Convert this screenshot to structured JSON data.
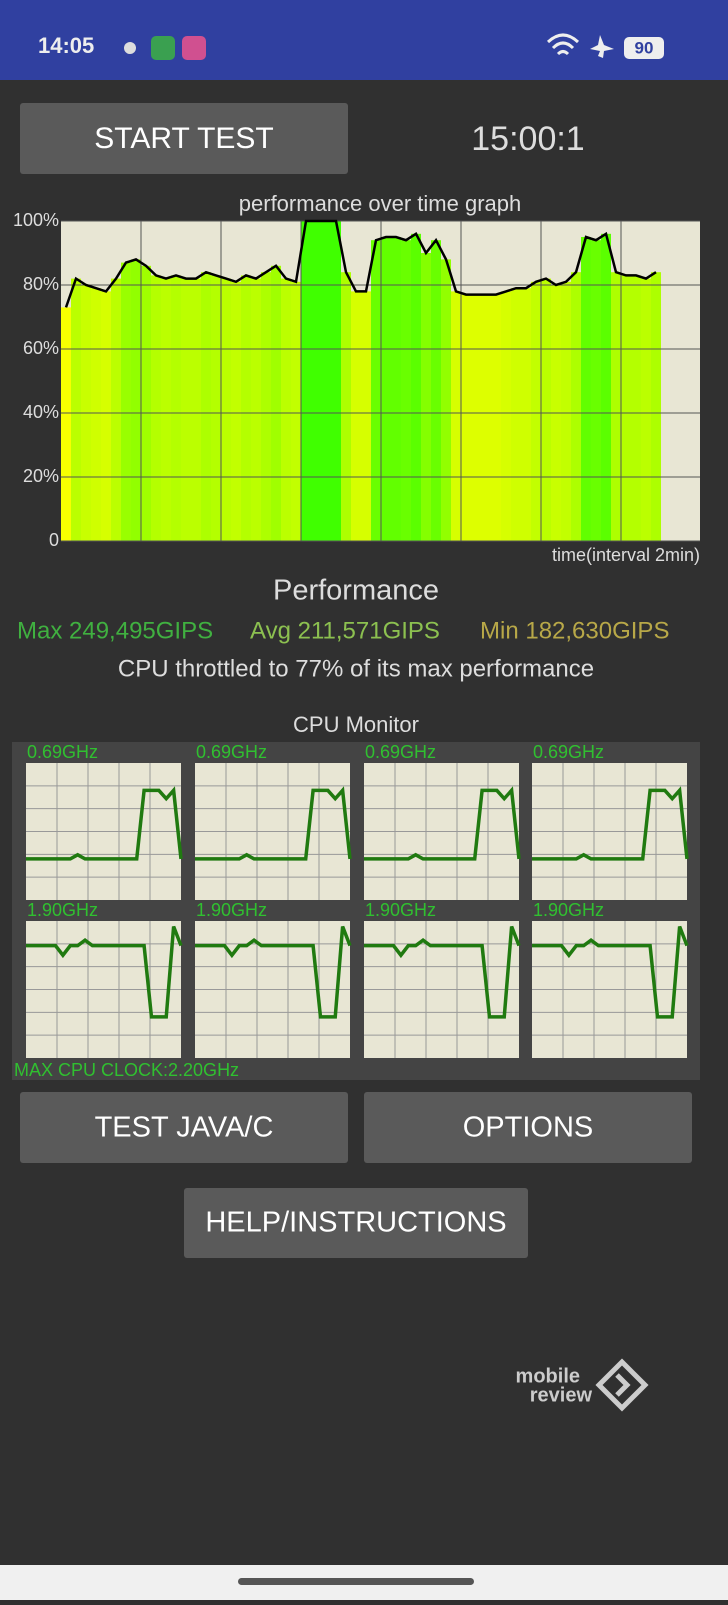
{
  "status_bar": {
    "time": "14:05",
    "battery": "90"
  },
  "buttons": {
    "start": "START TEST",
    "java": "TEST JAVA/C",
    "options": "OPTIONS",
    "help": "HELP/INSTRUCTIONS"
  },
  "timer": "15:00:1",
  "chart_data": {
    "type": "area",
    "title": "performance over time graph",
    "x_label": "time(interval 2min)",
    "ylim": [
      0,
      100
    ],
    "yticks": [
      0,
      {
        "value": 20,
        "label": "20%"
      },
      {
        "value": 40,
        "label": "40%"
      },
      {
        "value": 60,
        "label": "60%"
      },
      {
        "value": 80,
        "label": "80%"
      },
      {
        "value": 100,
        "label": "100%"
      }
    ],
    "grid": true,
    "line_color": "#000000",
    "values": [
      73,
      82,
      80,
      79,
      78,
      82,
      87,
      88,
      86,
      83,
      82,
      83,
      82,
      82,
      84,
      83,
      82,
      81,
      83,
      82,
      84,
      86,
      82,
      81,
      100,
      100,
      100,
      100,
      84,
      78,
      78,
      94,
      95,
      95,
      94,
      96,
      90,
      94,
      88,
      78,
      77,
      77,
      77,
      77,
      78,
      79,
      79,
      81,
      82,
      80,
      81,
      84,
      95,
      94,
      96,
      84,
      83,
      83,
      82,
      84
    ]
  },
  "performance": {
    "heading": "Performance",
    "max": "Max 249,495GIPS",
    "avg": "Avg 211,571GIPS",
    "min": "Min 182,630GIPS",
    "throttled": "CPU throttled to 77% of its max performance"
  },
  "cpu_monitor": {
    "title": "CPU Monitor",
    "max_clock": "MAX CPU CLOCK:2.20GHz",
    "ylim": [
      0,
      100
    ],
    "cores": [
      {
        "freq": "0.69GHz",
        "values": [
          30,
          30,
          30,
          30,
          30,
          30,
          30,
          33,
          30,
          30,
          30,
          30,
          30,
          30,
          30,
          30,
          80,
          80,
          80,
          74,
          80,
          30
        ]
      },
      {
        "freq": "0.69GHz",
        "values": [
          30,
          30,
          30,
          30,
          30,
          30,
          30,
          33,
          30,
          30,
          30,
          30,
          30,
          30,
          30,
          30,
          80,
          80,
          80,
          74,
          80,
          30
        ]
      },
      {
        "freq": "0.69GHz",
        "values": [
          30,
          30,
          30,
          30,
          30,
          30,
          30,
          33,
          30,
          30,
          30,
          30,
          30,
          30,
          30,
          30,
          80,
          80,
          80,
          74,
          80,
          30
        ]
      },
      {
        "freq": "0.69GHz",
        "values": [
          30,
          30,
          30,
          30,
          30,
          30,
          30,
          33,
          30,
          30,
          30,
          30,
          30,
          30,
          30,
          30,
          80,
          80,
          80,
          74,
          80,
          30
        ]
      },
      {
        "freq": "1.90GHz",
        "values": [
          82,
          82,
          82,
          82,
          82,
          75,
          82,
          82,
          86,
          82,
          82,
          82,
          82,
          82,
          82,
          82,
          82,
          30,
          30,
          30,
          96,
          82
        ]
      },
      {
        "freq": "1.90GHz",
        "values": [
          82,
          82,
          82,
          82,
          82,
          75,
          82,
          82,
          86,
          82,
          82,
          82,
          82,
          82,
          82,
          82,
          82,
          30,
          30,
          30,
          96,
          82
        ]
      },
      {
        "freq": "1.90GHz",
        "values": [
          82,
          82,
          82,
          82,
          82,
          75,
          82,
          82,
          86,
          82,
          82,
          82,
          82,
          82,
          82,
          82,
          82,
          30,
          30,
          30,
          96,
          82
        ]
      },
      {
        "freq": "1.90GHz",
        "values": [
          82,
          82,
          82,
          82,
          82,
          75,
          82,
          82,
          86,
          82,
          82,
          82,
          82,
          82,
          82,
          82,
          82,
          30,
          30,
          30,
          96,
          82
        ]
      }
    ]
  },
  "watermark": {
    "line1": "mobile",
    "line2": "review"
  }
}
